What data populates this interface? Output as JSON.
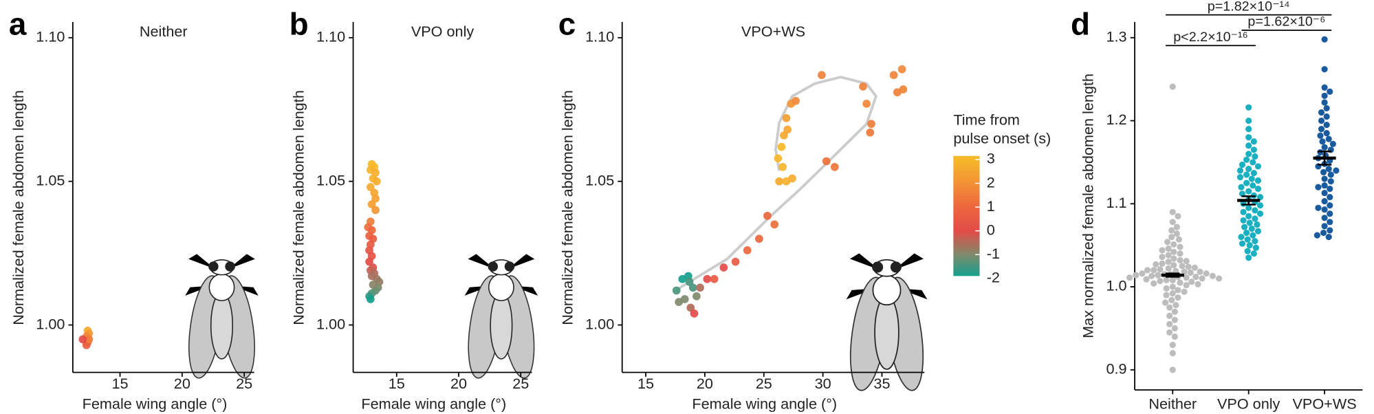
{
  "chart_data": [
    {
      "type": "scatter",
      "panel": "a",
      "title": "Neither",
      "xlabel": "Female wing angle (°)",
      "ylabel": "Normalized female abdomen length",
      "x": [
        12.4,
        12.5,
        12.3,
        12.4,
        12.3,
        12.5,
        12.0
      ],
      "y": [
        0.998,
        0.997,
        0.996,
        0.994,
        0.993,
        0.995,
        0.995
      ],
      "time": [
        2.6,
        2.2,
        1.7,
        1.2,
        0.6,
        1.5,
        0
      ],
      "xlim": [
        11.2,
        25.8
      ],
      "xticks": [
        15,
        20,
        25
      ],
      "ylim": [
        0.9835,
        1.1055
      ],
      "yticks": [
        {
          "value": 1.0,
          "label": "1.00"
        },
        {
          "value": 1.05,
          "label": "1.05"
        },
        {
          "value": 1.1,
          "label": "1.10"
        }
      ]
    },
    {
      "type": "scatter",
      "panel": "b",
      "title": "VPO only",
      "xlabel": "Female wing angle (°)",
      "ylabel": "Normalized female abdomen length",
      "x": [
        13.0,
        13.2,
        12.9,
        13.3,
        13.1,
        13.4,
        12.9,
        13.2,
        13.3,
        13.0,
        13.3,
        12.9,
        12.7,
        13.0,
        12.8,
        13.1,
        12.9,
        12.8,
        13.0,
        12.8,
        13.1,
        12.9,
        13.2,
        13.4,
        13.6,
        13.5,
        13.3,
        13.0,
        12.8,
        12.9,
        13.1,
        13.0
      ],
      "y": [
        1.056,
        1.055,
        1.054,
        1.053,
        1.051,
        1.05,
        1.048,
        1.046,
        1.044,
        1.042,
        1.04,
        1.036,
        1.034,
        1.033,
        1.031,
        1.03,
        1.028,
        1.026,
        1.024,
        1.022,
        1.02,
        1.019,
        1.018,
        1.016,
        1.015,
        1.013,
        1.012,
        1.011,
        1.01,
        1.009,
        1.014,
        1.017
      ],
      "time": [
        3,
        3,
        2.9,
        2.8,
        2.8,
        2.7,
        2.6,
        2.5,
        2.4,
        2.3,
        2.1,
        1.5,
        1.2,
        1.0,
        0.8,
        0.6,
        0.5,
        0.3,
        0.2,
        0,
        -0.1,
        -0.3,
        -0.5,
        -0.7,
        -0.8,
        -1,
        -1.2,
        -1.4,
        -1.7,
        -2,
        -0.9,
        -0.6
      ],
      "xlim": [
        11.5,
        25.9
      ],
      "xticks": [
        15,
        20,
        25
      ],
      "ylim": [
        0.9835,
        1.1055
      ],
      "yticks": [
        {
          "value": 1.0,
          "label": "1.00"
        },
        {
          "value": 1.05,
          "label": "1.05"
        },
        {
          "value": 1.1,
          "label": "1.10"
        }
      ]
    },
    {
      "type": "scatter",
      "panel": "c",
      "title": "VPO+WS",
      "xlabel": "Female wing angle (°)",
      "ylabel": "Normalized female abdomen length",
      "x": [
        17.6,
        18.1,
        18.6,
        19.0,
        18.3,
        18.8,
        19.3,
        17.8,
        19.6,
        19.1,
        18.7,
        20.2,
        20.8,
        21.6,
        22.6,
        23.6,
        24.6,
        25.3,
        25.9,
        26.3,
        26.9,
        27.4,
        26.6,
        26.2,
        26.5,
        26.7,
        27.0,
        26.9,
        27.3,
        27.7,
        29.9,
        33.4,
        33.7,
        34.1,
        34.0,
        31.0,
        30.3,
        36.0,
        36.7,
        36.3,
        36.8
      ],
      "y": [
        1.012,
        1.016,
        1.017,
        1.013,
        1.009,
        1.006,
        1.01,
        1.008,
        1.013,
        1.004,
        1.015,
        1.016,
        1.016,
        1.02,
        1.022,
        1.026,
        1.03,
        1.038,
        1.035,
        1.05,
        1.05,
        1.051,
        1.055,
        1.058,
        1.062,
        1.066,
        1.068,
        1.072,
        1.077,
        1.078,
        1.087,
        1.083,
        1.077,
        1.07,
        1.067,
        1.055,
        1.057,
        1.087,
        1.089,
        1.081,
        1.082
      ],
      "time": [
        -1.5,
        -2,
        -2,
        -1.5,
        -1,
        -0.5,
        -1,
        -1,
        -0.5,
        0,
        -1.5,
        0,
        0.5,
        0,
        0.5,
        1,
        1,
        1,
        1.2,
        2.6,
        2.8,
        2.7,
        2.9,
        3,
        3,
        2.6,
        2.5,
        2.3,
        2.1,
        1.8,
        1.6,
        1.6,
        1.8,
        1.5,
        1.4,
        1.3,
        1.2,
        1.7,
        1.8,
        1.6,
        1.7
      ],
      "trace_x": [
        17.7,
        19.5,
        21.9,
        25.6,
        28,
        30,
        33.7,
        34.5,
        33.7,
        31.5,
        29.3,
        27.4,
        26.3,
        26,
        26.3
      ],
      "trace_y": [
        1.0125,
        1.017,
        1.023,
        1.038,
        1.047,
        1.055,
        1.07,
        1.0796,
        1.084,
        1.0863,
        1.084,
        1.0796,
        1.0704,
        1.061,
        1.0537
      ],
      "trace_color": "#cccccc",
      "xlim": [
        13,
        38.6
      ],
      "xticks": [
        15,
        20,
        25,
        30,
        35
      ],
      "ylim": [
        0.9835,
        1.1055
      ],
      "yticks": [
        {
          "value": 1.0,
          "label": "1.00"
        },
        {
          "value": 1.05,
          "label": "1.05"
        },
        {
          "value": 1.1,
          "label": "1.10"
        }
      ],
      "colorbar": {
        "title": [
          "Time from",
          "pulse onset (s)"
        ],
        "lim": [
          -1.9,
          3.15
        ],
        "ticks": [
          3,
          2,
          1,
          0,
          -1,
          -2
        ],
        "colorscale": [
          [
            -2,
            "#14a08e"
          ],
          [
            -1,
            "#7f8a6c"
          ],
          [
            0,
            "#e34c48"
          ],
          [
            1,
            "#ec673e"
          ],
          [
            2,
            "#f29236"
          ],
          [
            3,
            "#f7b829"
          ]
        ]
      }
    },
    {
      "type": "swarm",
      "panel": "d",
      "ylabel": "Max normalized female abdomen length",
      "categories": [
        "Neither",
        "VPO only",
        "VPO+WS"
      ],
      "colors": [
        "#bdbdbd",
        "#1ab0c2",
        "#1a5b9e"
      ],
      "groups": [
        [
          1.241,
          1.09,
          1.085,
          1.078,
          1.072,
          1.068,
          1.064,
          1.06,
          1.057,
          1.054,
          1.051,
          1.048,
          1.046,
          1.044,
          1.042,
          1.04,
          1.038,
          1.036,
          1.034,
          1.032,
          1.031,
          1.03,
          1.028,
          1.027,
          1.026,
          1.025,
          1.024,
          1.023,
          1.022,
          1.021,
          1.02,
          1.02,
          1.019,
          1.018,
          1.018,
          1.017,
          1.016,
          1.016,
          1.015,
          1.015,
          1.014,
          1.014,
          1.013,
          1.013,
          1.012,
          1.012,
          1.011,
          1.011,
          1.01,
          1.01,
          1.009,
          1.008,
          1.008,
          1.007,
          1.006,
          1.005,
          1.004,
          1.003,
          1.002,
          1.0,
          0.998,
          0.996,
          0.994,
          0.992,
          0.99,
          0.987,
          0.984,
          0.981,
          0.978,
          0.975,
          0.97,
          0.965,
          0.96,
          0.955,
          0.95,
          0.945,
          0.94,
          0.93,
          0.92,
          0.9
        ],
        [
          1.216,
          1.2,
          1.19,
          1.18,
          1.175,
          1.17,
          1.165,
          1.16,
          1.157,
          1.153,
          1.15,
          1.147,
          1.145,
          1.142,
          1.14,
          1.137,
          1.135,
          1.132,
          1.13,
          1.128,
          1.125,
          1.122,
          1.12,
          1.118,
          1.115,
          1.112,
          1.11,
          1.108,
          1.105,
          1.102,
          1.1,
          1.098,
          1.095,
          1.092,
          1.09,
          1.088,
          1.085,
          1.082,
          1.08,
          1.077,
          1.075,
          1.072,
          1.07,
          1.067,
          1.065,
          1.062,
          1.06,
          1.057,
          1.055,
          1.052,
          1.05,
          1.047,
          1.043,
          1.04,
          1.035
        ],
        [
          1.298,
          1.262,
          1.24,
          1.235,
          1.23,
          1.222,
          1.215,
          1.21,
          1.205,
          1.2,
          1.195,
          1.19,
          1.185,
          1.182,
          1.178,
          1.175,
          1.172,
          1.168,
          1.165,
          1.162,
          1.158,
          1.155,
          1.152,
          1.148,
          1.145,
          1.142,
          1.138,
          1.135,
          1.13,
          1.127,
          1.122,
          1.118,
          1.113,
          1.108,
          1.103,
          1.098,
          1.093,
          1.088,
          1.083,
          1.078,
          1.073,
          1.068,
          1.065,
          1.062,
          1.06,
          1.095,
          1.12,
          1.14
        ]
      ],
      "means": [
        1.014,
        1.104,
        1.155
      ],
      "errors": [
        0.002,
        0.005,
        0.008
      ],
      "ylim": [
        0.8758,
        1.319
      ],
      "yticks": [
        0.9,
        {
          "value": 1.0,
          "label": "1.0"
        },
        1.1,
        1.2,
        1.3
      ],
      "comparisons": [
        {
          "label": "p=1.82×10⁻¹⁴",
          "from": "Neither",
          "to": "VPO+WS"
        },
        {
          "label": "p=1.62×10⁻⁶",
          "from": "VPO only",
          "to": "VPO+WS"
        },
        {
          "label": "p<2.2×10⁻¹⁶",
          "from": "Neither",
          "to": "VPO only"
        }
      ]
    }
  ]
}
